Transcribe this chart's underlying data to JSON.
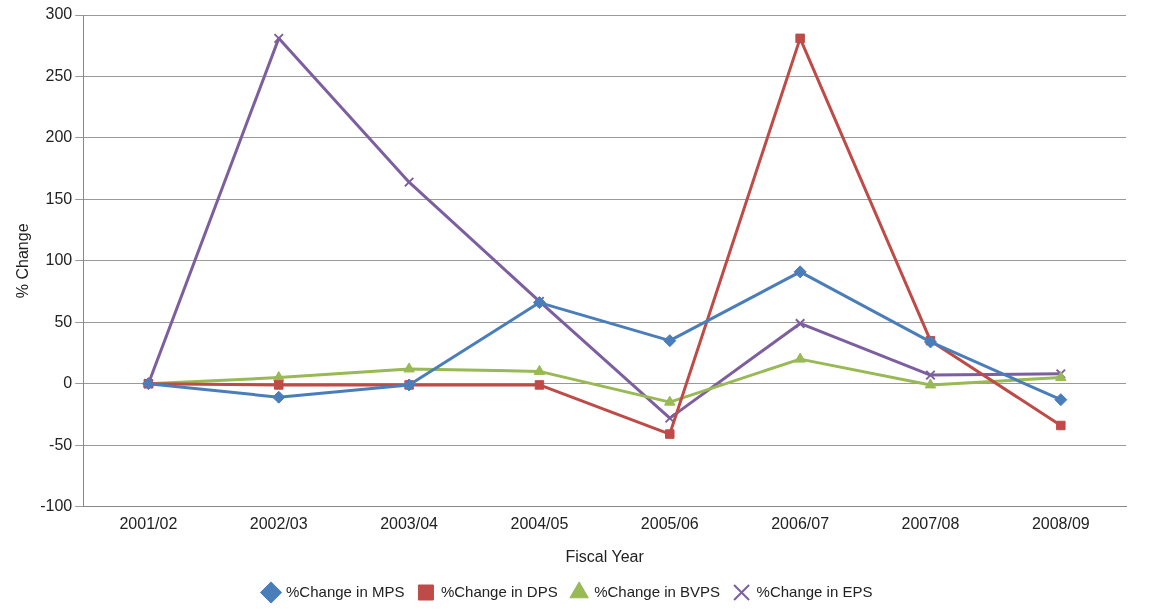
{
  "chart_data": {
    "type": "line",
    "xlabel": "Fiscal Year",
    "ylabel": "% Change",
    "categories": [
      "2001/02",
      "2002/03",
      "2003/04",
      "2004/05",
      "2005/06",
      "2006/07",
      "2007/08",
      "2008/09"
    ],
    "series": [
      {
        "name": "%Change in MPS",
        "color": "#4a7ebb",
        "marker": "diamond",
        "values": [
          0,
          -11,
          -1,
          66,
          35,
          91,
          34,
          -13
        ]
      },
      {
        "name": "%Change in DPS",
        "color": "#be4b48",
        "marker": "square",
        "values": [
          0,
          -1,
          -1,
          -1,
          -41,
          281,
          35,
          -34
        ]
      },
      {
        "name": "%Change in BVPS",
        "color": "#98b954",
        "marker": "triangle",
        "values": [
          0,
          5,
          12,
          10,
          -15,
          20,
          -1,
          5
        ]
      },
      {
        "name": "%Change in EPS",
        "color": "#7d5fa0",
        "marker": "cross",
        "values": [
          0,
          281,
          164,
          67,
          -28,
          49,
          7,
          8
        ]
      }
    ],
    "ylim": [
      -100,
      300
    ],
    "yticks": [
      -100,
      -50,
      0,
      50,
      100,
      150,
      200,
      250,
      300
    ],
    "grid": "y",
    "legend": "bottom",
    "line_style": "solid"
  }
}
